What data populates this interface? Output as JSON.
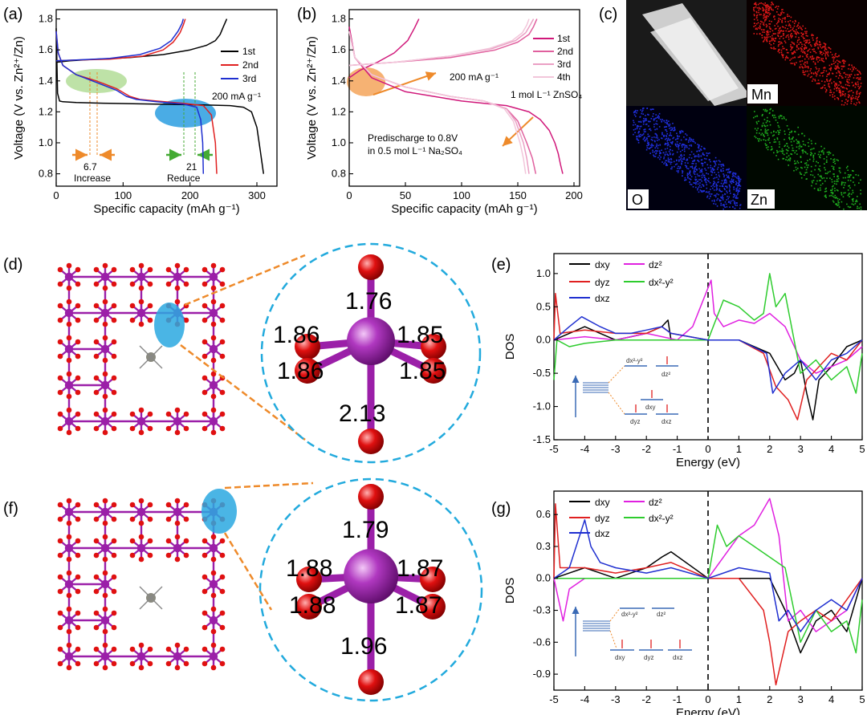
{
  "panels": {
    "a": "(a)",
    "b": "(b)",
    "c": "(c)",
    "d": "(d)",
    "e": "(e)",
    "f": "(f)",
    "g": "(g)"
  },
  "colors": {
    "black": "#000000",
    "red": "#e02020",
    "blue": "#1f2fd0",
    "magenta": "#e020e0",
    "green": "#2ecc2e",
    "pink1": "#d0187a",
    "pink2": "#e0609e",
    "pink3": "#eaa0c4",
    "pink4": "#f2c6da",
    "mn_atom": "#9b1fa8",
    "o_atom": "#e01010",
    "ring": "#22aadd",
    "arrow": "#ee8a2a"
  },
  "chart_data": [
    {
      "id": "a",
      "type": "line",
      "xlabel": "Specific capacity (mAh g⁻¹)",
      "ylabel": "Voltage (V vs. Zn²⁺/Zn)",
      "xlim": [
        0,
        330
      ],
      "ylim": [
        0.72,
        1.86
      ],
      "xticks": [
        "0",
        "100",
        "200",
        "300"
      ],
      "xtickvals": [
        0,
        100,
        200,
        300
      ],
      "yticks": [
        "0.8",
        "1.0",
        "1.2",
        "1.4",
        "1.6",
        "1.8"
      ],
      "ytickvals": [
        0.8,
        1.0,
        1.2,
        1.4,
        1.6,
        1.8
      ],
      "legend": [
        "1st",
        "2nd",
        "3rd"
      ],
      "rate": "200 mA g⁻¹",
      "annotations": {
        "increase_value": "6.7",
        "increase_label": "Increase",
        "reduce_value": "21",
        "reduce_label": "Reduce"
      },
      "series": [
        {
          "name": "1st discharge",
          "color": "#000000",
          "x": [
            0,
            2,
            5,
            10,
            30,
            80,
            150,
            220,
            260,
            280,
            292,
            300,
            305,
            310
          ],
          "y": [
            1.74,
            1.32,
            1.27,
            1.265,
            1.26,
            1.255,
            1.25,
            1.245,
            1.24,
            1.23,
            1.2,
            1.1,
            0.95,
            0.8
          ]
        },
        {
          "name": "1st charge",
          "color": "#000000",
          "x": [
            0,
            20,
            60,
            110,
            160,
            200,
            225,
            238,
            245,
            250,
            255
          ],
          "y": [
            1.52,
            1.53,
            1.54,
            1.55,
            1.57,
            1.6,
            1.63,
            1.66,
            1.7,
            1.75,
            1.8
          ]
        },
        {
          "name": "2nd discharge",
          "color": "#e02020",
          "x": [
            0,
            3,
            10,
            30,
            60,
            90,
            110,
            125,
            150,
            190,
            220,
            232,
            238,
            240
          ],
          "y": [
            1.72,
            1.58,
            1.5,
            1.44,
            1.4,
            1.35,
            1.3,
            1.28,
            1.27,
            1.255,
            1.24,
            1.18,
            1.0,
            0.8
          ]
        },
        {
          "name": "2nd charge",
          "color": "#e02020",
          "x": [
            0,
            30,
            80,
            130,
            160,
            175,
            185,
            190,
            193
          ],
          "y": [
            1.53,
            1.535,
            1.54,
            1.56,
            1.6,
            1.65,
            1.71,
            1.76,
            1.8
          ]
        },
        {
          "name": "3rd discharge",
          "color": "#1f2fd0",
          "x": [
            0,
            3,
            10,
            30,
            60,
            90,
            105,
            120,
            150,
            190,
            210,
            216,
            219,
            220
          ],
          "y": [
            1.72,
            1.58,
            1.5,
            1.44,
            1.39,
            1.34,
            1.3,
            1.28,
            1.265,
            1.25,
            1.23,
            1.15,
            1.0,
            0.8
          ]
        },
        {
          "name": "3rd charge",
          "color": "#1f2fd0",
          "x": [
            0,
            30,
            80,
            125,
            155,
            172,
            182,
            188,
            190
          ],
          "y": [
            1.53,
            1.535,
            1.545,
            1.57,
            1.61,
            1.66,
            1.72,
            1.77,
            1.8
          ]
        }
      ]
    },
    {
      "id": "b",
      "type": "line",
      "xlabel": "Specific capacity (mAh g⁻¹)",
      "ylabel": "Voltage (V vs. Zn²⁺/Zn)",
      "xlim": [
        0,
        205
      ],
      "ylim": [
        0.72,
        1.86
      ],
      "xticks": [
        "0",
        "50",
        "100",
        "150",
        "200"
      ],
      "xtickvals": [
        0,
        50,
        100,
        150,
        200
      ],
      "yticks": [
        "0.8",
        "1.0",
        "1.2",
        "1.4",
        "1.6",
        "1.8"
      ],
      "ytickvals": [
        0.8,
        1.0,
        1.2,
        1.4,
        1.6,
        1.8
      ],
      "legend": [
        "1st",
        "2nd",
        "3rd",
        "4th"
      ],
      "rate": "200 mA g⁻¹",
      "electrolyte": "1 mol L⁻¹ ZnSO₄",
      "note_line1": "Predischarge to 0.8V",
      "note_line2": "in 0.5 mol L⁻¹ Na₂SO₄",
      "series": [
        {
          "name": "1st charge",
          "color": "#d0187a",
          "x": [
            0,
            10,
            25,
            40,
            52,
            58,
            62
          ],
          "y": [
            1.42,
            1.47,
            1.52,
            1.58,
            1.66,
            1.74,
            1.8
          ]
        },
        {
          "name": "1st discharge",
          "color": "#d0187a",
          "x": [
            0,
            5,
            20,
            50,
            100,
            140,
            160,
            170,
            178,
            183,
            186,
            188,
            190
          ],
          "y": [
            1.75,
            1.55,
            1.42,
            1.33,
            1.27,
            1.24,
            1.2,
            1.15,
            1.08,
            1.0,
            0.93,
            0.86,
            0.8
          ]
        },
        {
          "name": "2nd charge",
          "color": "#e0609e",
          "x": [
            0,
            40,
            90,
            130,
            150,
            160,
            164,
            167
          ],
          "y": [
            1.5,
            1.52,
            1.55,
            1.6,
            1.65,
            1.7,
            1.75,
            1.8
          ]
        },
        {
          "name": "2nd discharge",
          "color": "#e0609e",
          "x": [
            0,
            5,
            20,
            50,
            90,
            120,
            140,
            150,
            158,
            163,
            166
          ],
          "y": [
            1.72,
            1.55,
            1.44,
            1.36,
            1.3,
            1.27,
            1.22,
            1.14,
            1.0,
            0.9,
            0.8
          ]
        },
        {
          "name": "3rd charge",
          "color": "#eaa0c4",
          "x": [
            0,
            40,
            90,
            128,
            148,
            157,
            161,
            164
          ],
          "y": [
            1.5,
            1.52,
            1.56,
            1.61,
            1.66,
            1.71,
            1.76,
            1.8
          ]
        },
        {
          "name": "3rd discharge",
          "color": "#eaa0c4",
          "x": [
            0,
            5,
            20,
            50,
            90,
            120,
            140,
            148,
            155,
            158,
            160
          ],
          "y": [
            1.72,
            1.55,
            1.44,
            1.36,
            1.3,
            1.27,
            1.22,
            1.14,
            1.0,
            0.9,
            0.8
          ]
        },
        {
          "name": "4th charge",
          "color": "#f2c6da",
          "x": [
            0,
            40,
            90,
            125,
            145,
            154,
            158,
            160
          ],
          "y": [
            1.5,
            1.52,
            1.56,
            1.61,
            1.66,
            1.71,
            1.76,
            1.8
          ]
        },
        {
          "name": "4th discharge",
          "color": "#f2c6da",
          "x": [
            0,
            5,
            20,
            50,
            90,
            120,
            138,
            146,
            152,
            155,
            157
          ],
          "y": [
            1.72,
            1.55,
            1.44,
            1.36,
            1.3,
            1.27,
            1.22,
            1.14,
            1.0,
            0.9,
            0.8
          ]
        }
      ]
    },
    {
      "id": "e",
      "type": "line",
      "xlabel": "Energy (eV)",
      "ylabel": "DOS",
      "xlim": [
        -5,
        5
      ],
      "ylim": [
        -1.5,
        1.3
      ],
      "xticks": [
        "-5",
        "-4",
        "-3",
        "-2",
        "-1",
        "0",
        "1",
        "2",
        "3",
        "4",
        "5"
      ],
      "xtickvals": [
        -5,
        -4,
        -3,
        -2,
        -1,
        0,
        1,
        2,
        3,
        4,
        5
      ],
      "yticks": [
        "1.0",
        "0.5",
        "0.0",
        "-0.5",
        "-1.0",
        "-1.5"
      ],
      "ytickvals": [
        1.0,
        0.5,
        0.0,
        -0.5,
        -1.0,
        -1.5
      ],
      "legend": [
        "dxy",
        "dz²",
        "dyz",
        "dx²-y²",
        "dxz"
      ],
      "series": [
        {
          "name": "dxy",
          "color": "#000000",
          "x": [
            -5,
            -4.5,
            -4,
            -3.5,
            -3,
            -2.5,
            -2,
            -1.5,
            -1.3,
            -1.2,
            0,
            1,
            2,
            2.5,
            2.8,
            3.0,
            3.2,
            3.4,
            3.6,
            4,
            4.5,
            5
          ],
          "y": [
            0.0,
            0.1,
            0.2,
            0.1,
            0.0,
            0.05,
            0.1,
            0.2,
            0.3,
            0.0,
            0.0,
            0.0,
            -0.2,
            -0.6,
            -0.5,
            -0.3,
            -0.8,
            -1.2,
            -0.6,
            -0.4,
            -0.1,
            0.0
          ]
        },
        {
          "name": "dz²",
          "color": "#e020e0",
          "x": [
            -5,
            -4,
            -3,
            -2,
            -1,
            -0.5,
            0.1,
            0.2,
            0.5,
            1,
            1.5,
            2,
            2.5,
            3,
            3.5,
            4,
            4.5,
            5
          ],
          "y": [
            0.0,
            0.05,
            0.0,
            0.1,
            0.0,
            0.2,
            0.9,
            0.4,
            0.2,
            0.3,
            0.25,
            0.4,
            0.2,
            -0.3,
            -0.5,
            -0.4,
            -0.3,
            -0.1
          ]
        },
        {
          "name": "dyz",
          "color": "#e02020",
          "x": [
            -5,
            -4.95,
            -4.8,
            -4,
            -3,
            -2,
            -1.5,
            -1.2,
            0,
            1,
            1.8,
            2.2,
            2.6,
            2.9,
            3.2,
            3.6,
            4,
            4.5,
            5
          ],
          "y": [
            0.0,
            0.7,
            0.1,
            0.15,
            0.1,
            0.1,
            0.2,
            0.1,
            0.0,
            0.0,
            -0.2,
            -0.7,
            -0.9,
            -1.2,
            -0.6,
            -0.4,
            -0.2,
            -0.3,
            0.0
          ]
        },
        {
          "name": "dx²-y²",
          "color": "#2ecc2e",
          "x": [
            -5,
            -4.9,
            -4.5,
            -4,
            -3,
            -2,
            -1,
            0,
            0.5,
            1,
            1.5,
            1.8,
            2,
            2.2,
            2.5,
            3,
            3.5,
            4,
            4.5,
            4.8,
            5
          ],
          "y": [
            -0.6,
            0.0,
            -0.1,
            -0.05,
            0.0,
            0.0,
            0.0,
            0.0,
            0.6,
            0.5,
            0.3,
            0.4,
            1.0,
            0.5,
            0.7,
            -0.5,
            -0.3,
            -0.6,
            -0.4,
            -0.8,
            -0.2
          ]
        },
        {
          "name": "dxz",
          "color": "#1f2fd0",
          "x": [
            -5,
            -4.5,
            -4.1,
            -3.5,
            -3,
            -2.5,
            -2,
            -1.5,
            -1.2,
            0,
            1,
            1.9,
            2.1,
            2.5,
            3,
            3.5,
            4,
            4.5,
            5
          ],
          "y": [
            0.0,
            0.2,
            0.35,
            0.2,
            0.1,
            0.1,
            0.15,
            0.2,
            0.1,
            0.0,
            0.0,
            -0.2,
            -0.8,
            -0.5,
            -0.3,
            -0.6,
            -0.3,
            -0.2,
            0.0
          ]
        }
      ]
    },
    {
      "id": "g",
      "type": "line",
      "xlabel": "Energy (eV)",
      "ylabel": "DOS",
      "xlim": [
        -5,
        5
      ],
      "ylim": [
        -1.05,
        0.82
      ],
      "xticks": [
        "-5",
        "-4",
        "-3",
        "-2",
        "-1",
        "0",
        "1",
        "2",
        "3",
        "4",
        "5"
      ],
      "xtickvals": [
        -5,
        -4,
        -3,
        -2,
        -1,
        0,
        1,
        2,
        3,
        4,
        5
      ],
      "yticks": [
        "0.6",
        "0.3",
        "0.0",
        "-0.3",
        "-0.6",
        "-0.9"
      ],
      "ytickvals": [
        0.6,
        0.3,
        0.0,
        -0.3,
        -0.6,
        -0.9
      ],
      "legend": [
        "dxy",
        "dz²",
        "dyz",
        "dx²-y²",
        "dxz"
      ],
      "series": [
        {
          "name": "dxy",
          "color": "#000000",
          "x": [
            -5,
            -4.5,
            -4,
            -3.5,
            -3,
            -2.5,
            -2,
            -1.5,
            -1.2,
            0,
            1,
            2,
            2.5,
            3,
            3.5,
            4,
            4.5,
            5
          ],
          "y": [
            0.0,
            0.05,
            0.1,
            0.05,
            0.0,
            0.05,
            0.1,
            0.2,
            0.25,
            0.0,
            0.0,
            0.0,
            -0.3,
            -0.7,
            -0.4,
            -0.3,
            -0.5,
            0.0
          ]
        },
        {
          "name": "dz²",
          "color": "#e020e0",
          "x": [
            -5,
            -4.7,
            -4.5,
            -4,
            -3,
            -2,
            -1,
            0,
            0.5,
            1,
            1.5,
            2,
            2.3,
            2.6,
            3,
            3.5,
            4,
            4.5,
            5
          ],
          "y": [
            0.0,
            -0.4,
            -0.1,
            0.0,
            0.0,
            0.0,
            0.0,
            0.0,
            0.2,
            0.4,
            0.5,
            0.75,
            0.4,
            -0.4,
            -0.3,
            -0.5,
            -0.4,
            -0.3,
            0.0
          ]
        },
        {
          "name": "dyz",
          "color": "#e02020",
          "x": [
            -5,
            -4.95,
            -4.8,
            -4,
            -3,
            -2,
            -1.2,
            0,
            1,
            1.8,
            2.0,
            2.2,
            2.6,
            3,
            3.5,
            4,
            4.5,
            5
          ],
          "y": [
            0.0,
            0.7,
            0.1,
            0.1,
            0.05,
            0.1,
            0.15,
            0.0,
            0.0,
            -0.3,
            -0.6,
            -1.0,
            -0.5,
            -0.4,
            -0.3,
            -0.4,
            -0.2,
            0.0
          ]
        },
        {
          "name": "dx²-y²",
          "color": "#2ecc2e",
          "x": [
            -5,
            -4.5,
            -4,
            -3,
            -2,
            -1,
            0,
            0.3,
            0.6,
            1,
            1.5,
            2,
            2.5,
            3,
            3.5,
            4,
            4.5,
            4.8,
            5
          ],
          "y": [
            0.0,
            0.0,
            0.0,
            0.0,
            0.0,
            0.0,
            0.0,
            0.5,
            0.3,
            0.4,
            0.3,
            0.2,
            0.1,
            -0.6,
            -0.3,
            -0.5,
            -0.4,
            -0.7,
            -0.2
          ]
        },
        {
          "name": "dxz",
          "color": "#1f2fd0",
          "x": [
            -5,
            -4.5,
            -4.0,
            -3.8,
            -3.5,
            -3,
            -2,
            -1.2,
            0,
            1,
            2,
            2.3,
            2.6,
            3,
            3.5,
            4,
            4.5,
            5
          ],
          "y": [
            0.0,
            0.1,
            0.55,
            0.3,
            0.15,
            0.1,
            0.05,
            0.1,
            0.0,
            0.1,
            0.05,
            -0.4,
            -0.3,
            -0.5,
            -0.3,
            -0.2,
            -0.3,
            0.0
          ]
        }
      ]
    }
  ],
  "panel_c": {
    "labels": [
      "Mn",
      "O",
      "Zn"
    ]
  },
  "panel_d": {
    "bond_top": "1.76",
    "bond_ul": "1.86",
    "bond_ll": "1.86",
    "bond_ur": "1.85",
    "bond_lr": "1.85",
    "bond_bottom": "2.13"
  },
  "panel_f": {
    "bond_top": "1.79",
    "bond_ul": "1.88",
    "bond_ll": "1.88",
    "bond_ur": "1.87",
    "bond_lr": "1.87",
    "bond_bottom": "1.96"
  },
  "inset_e": {
    "top1": "dx²-y²",
    "top2": "dz²",
    "mid": "dxy",
    "bot1": "dyz",
    "bot2": "dxz"
  },
  "inset_g": {
    "top1": "dx²-y²",
    "top2": "dz²",
    "bot1": "dxy",
    "bot2": "dyz",
    "bot3": "dxz"
  }
}
